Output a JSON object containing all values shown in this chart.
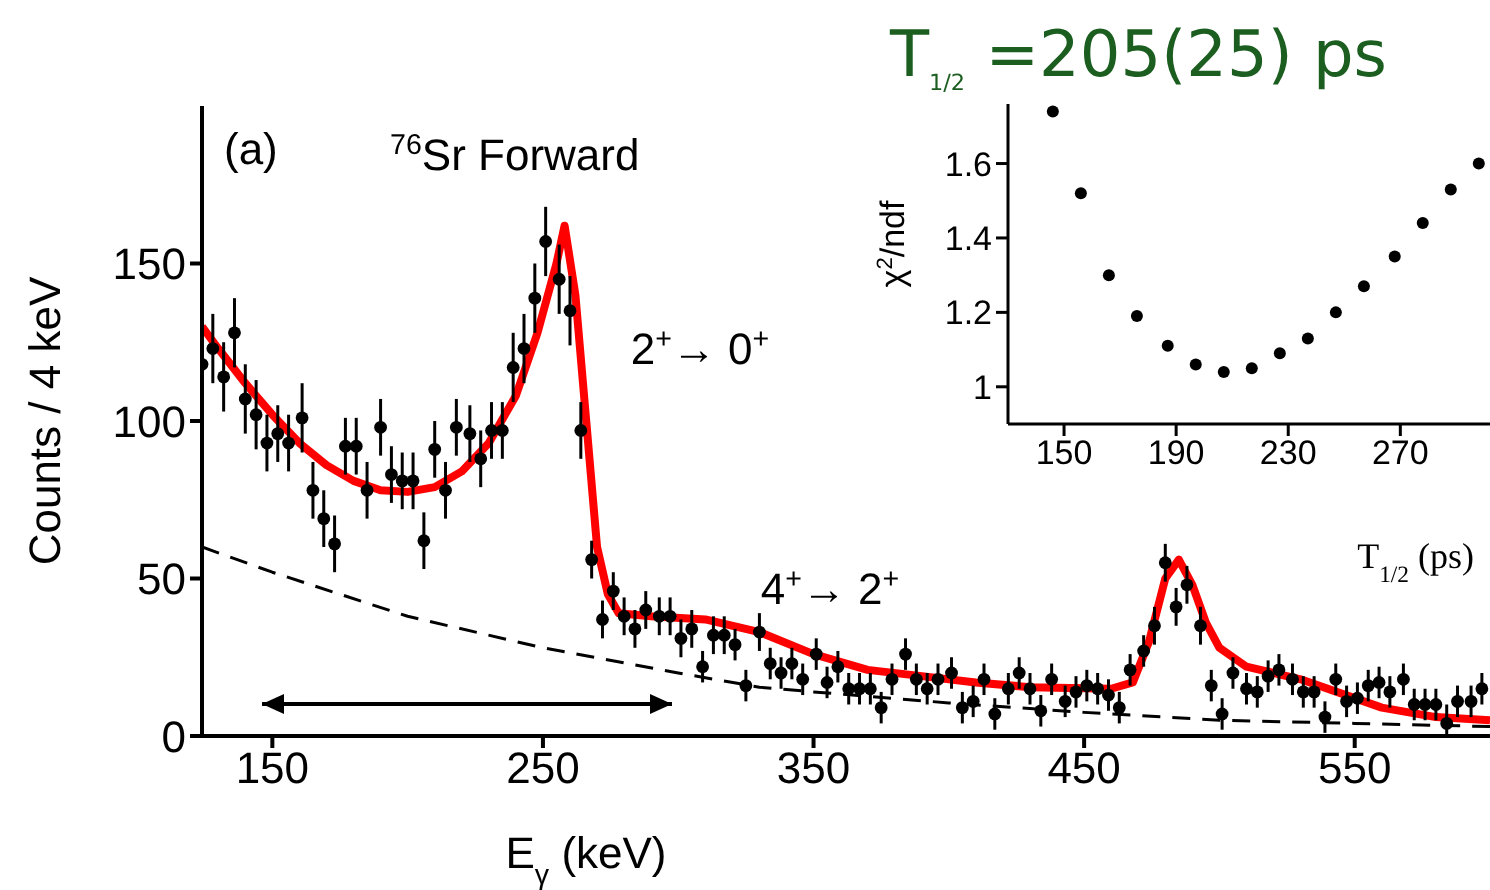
{
  "chart_data": [
    {
      "type": "scatter",
      "title": "T$_{1/2}$ =205(25) ps",
      "xlabel": "E$_{γ}$ (keV)",
      "ylabel": "Counts / 4 keV",
      "xlim": [
        124,
        600
      ],
      "xticks": [
        150,
        250,
        350,
        450,
        550
      ],
      "ylim": [
        0,
        200
      ],
      "yticks": [
        0,
        50,
        100,
        150
      ],
      "annotations": [
        "(a)",
        "$^{76}$Sr Forward",
        "2$^{+}$→ 0$^{+}$",
        "4$^{+}$→ 2$^{+}$"
      ],
      "series": [
        {
          "type": "line",
          "color": "#000000",
          "line_style": "dashed",
          "marker": "none",
          "x": [
            124,
            150,
            200,
            250,
            300,
            330,
            350,
            400,
            450,
            500,
            550,
            600
          ],
          "values": [
            60,
            52,
            38,
            28,
            20,
            15.5,
            14,
            10.5,
            7.5,
            5,
            4,
            3
          ]
        },
        {
          "type": "line",
          "color": "#ff0000",
          "line_style": "solid",
          "marker": "none",
          "x": [
            124,
            130,
            140,
            150,
            160,
            170,
            180,
            190,
            200,
            210,
            220,
            230,
            240,
            248,
            255,
            258,
            262,
            266,
            270,
            274,
            278,
            290,
            310,
            330,
            350,
            370,
            390,
            410,
            430,
            460,
            468,
            474,
            480,
            485,
            490,
            495,
            500,
            510,
            530,
            560,
            580,
            600
          ],
          "values": [
            130,
            123,
            112,
            102,
            93,
            86,
            81,
            78,
            77.5,
            79,
            84,
            93,
            108,
            128,
            150,
            162,
            140,
            100,
            60,
            45,
            39,
            38,
            37,
            33,
            26,
            21,
            19,
            17,
            15.5,
            15,
            17,
            30,
            50,
            56,
            48,
            36,
            28,
            22,
            18,
            9,
            6,
            5
          ]
        },
        {
          "color": "#000000",
          "marker": "circle",
          "x": [
            124,
            128,
            132,
            136,
            140,
            144,
            148,
            152,
            156,
            161,
            165,
            169,
            173,
            177,
            181,
            185,
            190,
            194,
            198,
            202,
            206,
            210,
            214,
            218,
            223,
            227,
            231,
            235,
            239,
            243,
            247,
            251,
            256,
            260,
            264,
            268,
            272,
            276,
            280,
            284,
            288,
            293,
            297,
            301,
            305,
            309,
            313,
            317,
            321,
            325,
            330,
            334,
            338,
            342,
            346,
            351,
            355,
            359,
            363,
            367,
            371,
            375,
            379,
            384,
            388,
            392,
            396,
            401,
            405,
            409,
            413,
            417,
            422,
            426,
            430,
            434,
            438,
            443,
            447,
            451,
            455,
            459,
            463,
            467,
            472,
            476,
            480,
            484,
            488,
            493,
            497,
            501,
            505,
            510,
            514,
            518,
            522,
            527,
            531,
            535,
            539,
            543,
            547,
            551,
            555,
            559,
            563,
            568,
            572,
            576,
            580,
            584,
            588,
            593,
            597
          ],
          "values": [
            118,
            123,
            114,
            128,
            107,
            102,
            93,
            96,
            93,
            101,
            78,
            69,
            61,
            92,
            92,
            78,
            98,
            83,
            81,
            81,
            62,
            91,
            78,
            98,
            96,
            88,
            97,
            97,
            117,
            123,
            139,
            157,
            145,
            135,
            97,
            56,
            37,
            46,
            38,
            34,
            40,
            38,
            38,
            31,
            34,
            22,
            32,
            32,
            29,
            16,
            33,
            23,
            20,
            23,
            18,
            26,
            17,
            22,
            15,
            15,
            15,
            9,
            18,
            26,
            18,
            15,
            18,
            20,
            9,
            11,
            18,
            7,
            15,
            20,
            15,
            8,
            18,
            11,
            14,
            16,
            15,
            13,
            9,
            21,
            27,
            35,
            55,
            41,
            48,
            35,
            16,
            7,
            20,
            15,
            14,
            19,
            21,
            18,
            14,
            14,
            6,
            18,
            11,
            12,
            16,
            17,
            14,
            18,
            10,
            10,
            10,
            4,
            11,
            11,
            15
          ],
          "errors": [
            11,
            11,
            11,
            11,
            11,
            11,
            9,
            9,
            9,
            11,
            9,
            9,
            9,
            9,
            9,
            9,
            9,
            9,
            9,
            9,
            9,
            9,
            9,
            9,
            9,
            9,
            9,
            9,
            11,
            11,
            11,
            11,
            11,
            11,
            9,
            6,
            6,
            6,
            6,
            6,
            6,
            6,
            6,
            6,
            6,
            5,
            6,
            6,
            5,
            5,
            6,
            5,
            5,
            5,
            5,
            5,
            5,
            5,
            5,
            5,
            5,
            5,
            5,
            5,
            5,
            5,
            5,
            5,
            5,
            5,
            5,
            5,
            5,
            5,
            5,
            5,
            5,
            5,
            5,
            5,
            5,
            5,
            5,
            5,
            5,
            6,
            6,
            6,
            6,
            6,
            5,
            5,
            5,
            5,
            5,
            5,
            5,
            5,
            5,
            5,
            5,
            5,
            5,
            5,
            5,
            5,
            5,
            5,
            5,
            5,
            5,
            [
              0.5,
              10
            ],
            5,
            5,
            5
          ]
        }
      ]
    },
    {
      "type": "scatter",
      "xlabel": "T$_{1/2}$ (ps)",
      "ylabel": "χ$^{2}$/ndf",
      "xlim": [
        130,
        302
      ],
      "xticks": [
        150,
        190,
        230,
        270
      ],
      "ylim": [
        0.9,
        1.76
      ],
      "yticks": [
        1,
        1.2,
        1.4,
        1.6
      ],
      "series": [
        {
          "color": "#000000",
          "marker": "circle",
          "x": [
            146,
            156,
            166,
            176,
            187,
            197,
            207,
            217,
            227,
            237,
            247,
            257,
            268,
            278,
            288,
            298
          ],
          "values": [
            1.74,
            1.52,
            1.3,
            1.19,
            1.11,
            1.06,
            1.04,
            1.05,
            1.09,
            1.13,
            1.2,
            1.27,
            1.35,
            1.44,
            1.53,
            1.6
          ]
        }
      ]
    }
  ]
}
